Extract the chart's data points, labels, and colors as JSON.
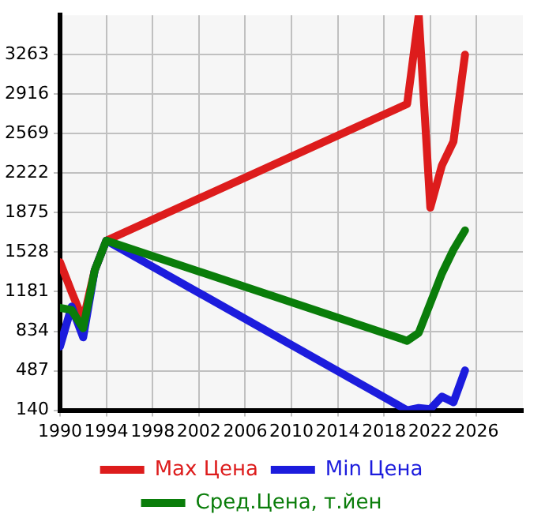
{
  "chart_data": {
    "type": "line",
    "x": [
      1990,
      1991,
      1992,
      1993,
      1994,
      2020,
      2021,
      2022,
      2023,
      2024,
      2025
    ],
    "series": [
      {
        "name": "Max Цена",
        "color": "#dd1c1c",
        "values": [
          1440,
          1180,
          930,
          1370,
          1630,
          2830,
          3610,
          1920,
          2290,
          2500,
          3263
        ]
      },
      {
        "name": "Min Цена",
        "color": "#1c1cdd",
        "values": [
          700,
          1050,
          780,
          1370,
          1630,
          140,
          160,
          150,
          260,
          210,
          490
        ]
      },
      {
        "name": "Сред.Цена, т.йен",
        "color": "#0a7d0a",
        "values": [
          1040,
          1020,
          860,
          1370,
          1630,
          750,
          820,
          1080,
          1340,
          1550,
          1720
        ]
      }
    ],
    "xlim": [
      1990,
      2030
    ],
    "xticks": [
      1990,
      1994,
      1998,
      2002,
      2006,
      2010,
      2014,
      2018,
      2022,
      2026
    ],
    "ylim": [
      140,
      3610
    ],
    "yticks": [
      140,
      487,
      834,
      1181,
      1528,
      1875,
      2222,
      2569,
      2916,
      3263
    ],
    "grid": true,
    "legend": "bottom",
    "marker": "none",
    "line_style": "solid"
  }
}
